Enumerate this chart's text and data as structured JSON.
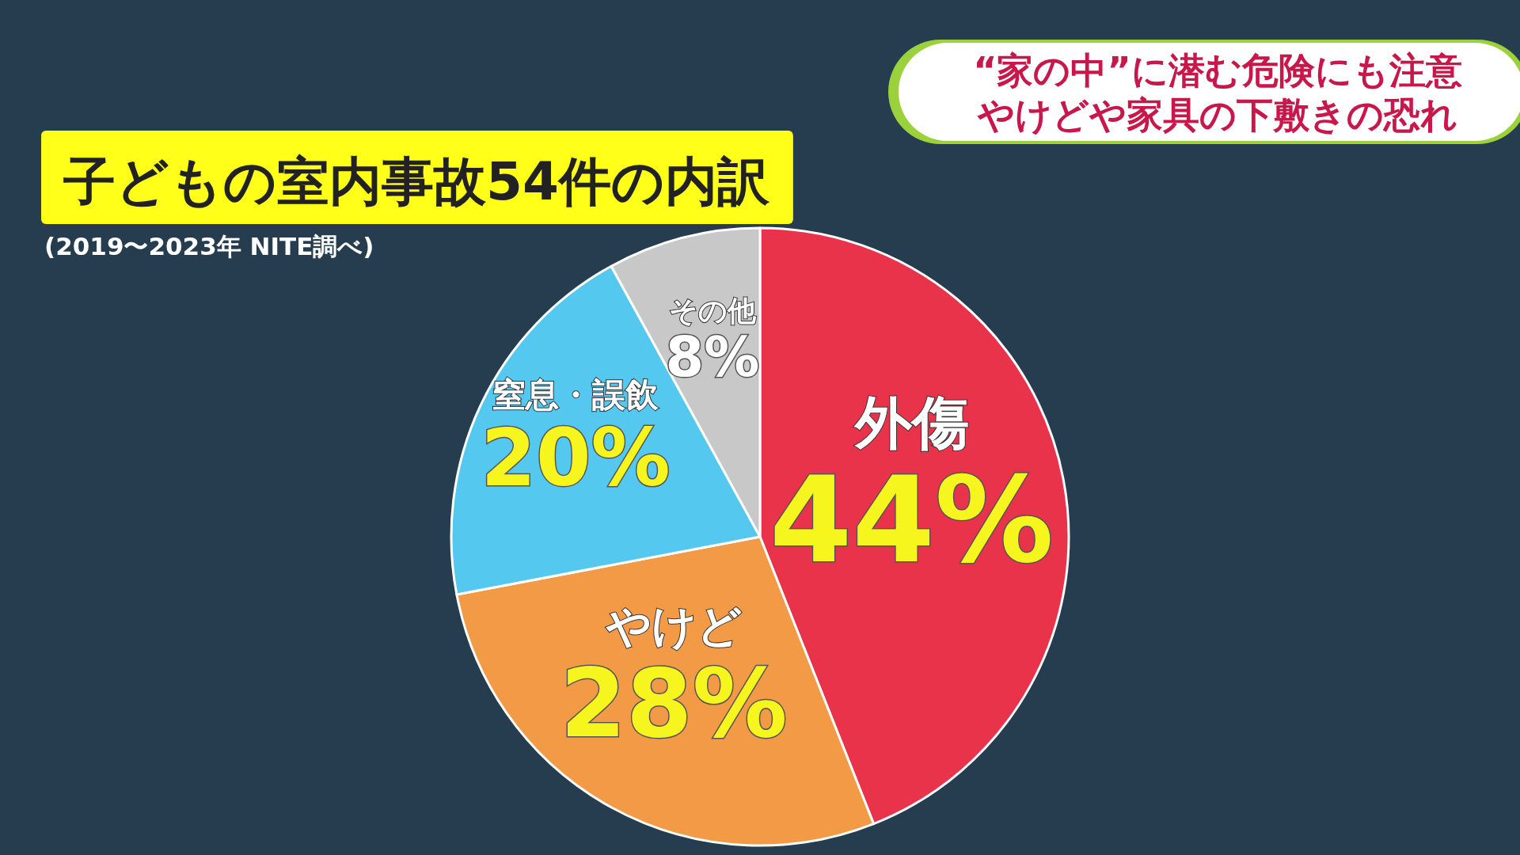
{
  "chart_data": {
    "type": "pie",
    "title": "子どもの室内事故54件の内訳",
    "subtitle": "(2019〜2023年 NITE調べ)",
    "annotations": [
      "“家の中”に潜む危険にも注意",
      "やけどや家具の下敷きの恐れ"
    ],
    "categories": [
      "外傷",
      "やけど",
      "窒息・誤飲",
      "その他"
    ],
    "values": [
      44,
      28,
      20,
      8
    ],
    "value_labels": [
      "44%",
      "28%",
      "20%",
      "8%"
    ],
    "colors": [
      "#e8334a",
      "#f29a45",
      "#55c8f0",
      "#c8c8c8"
    ]
  }
}
